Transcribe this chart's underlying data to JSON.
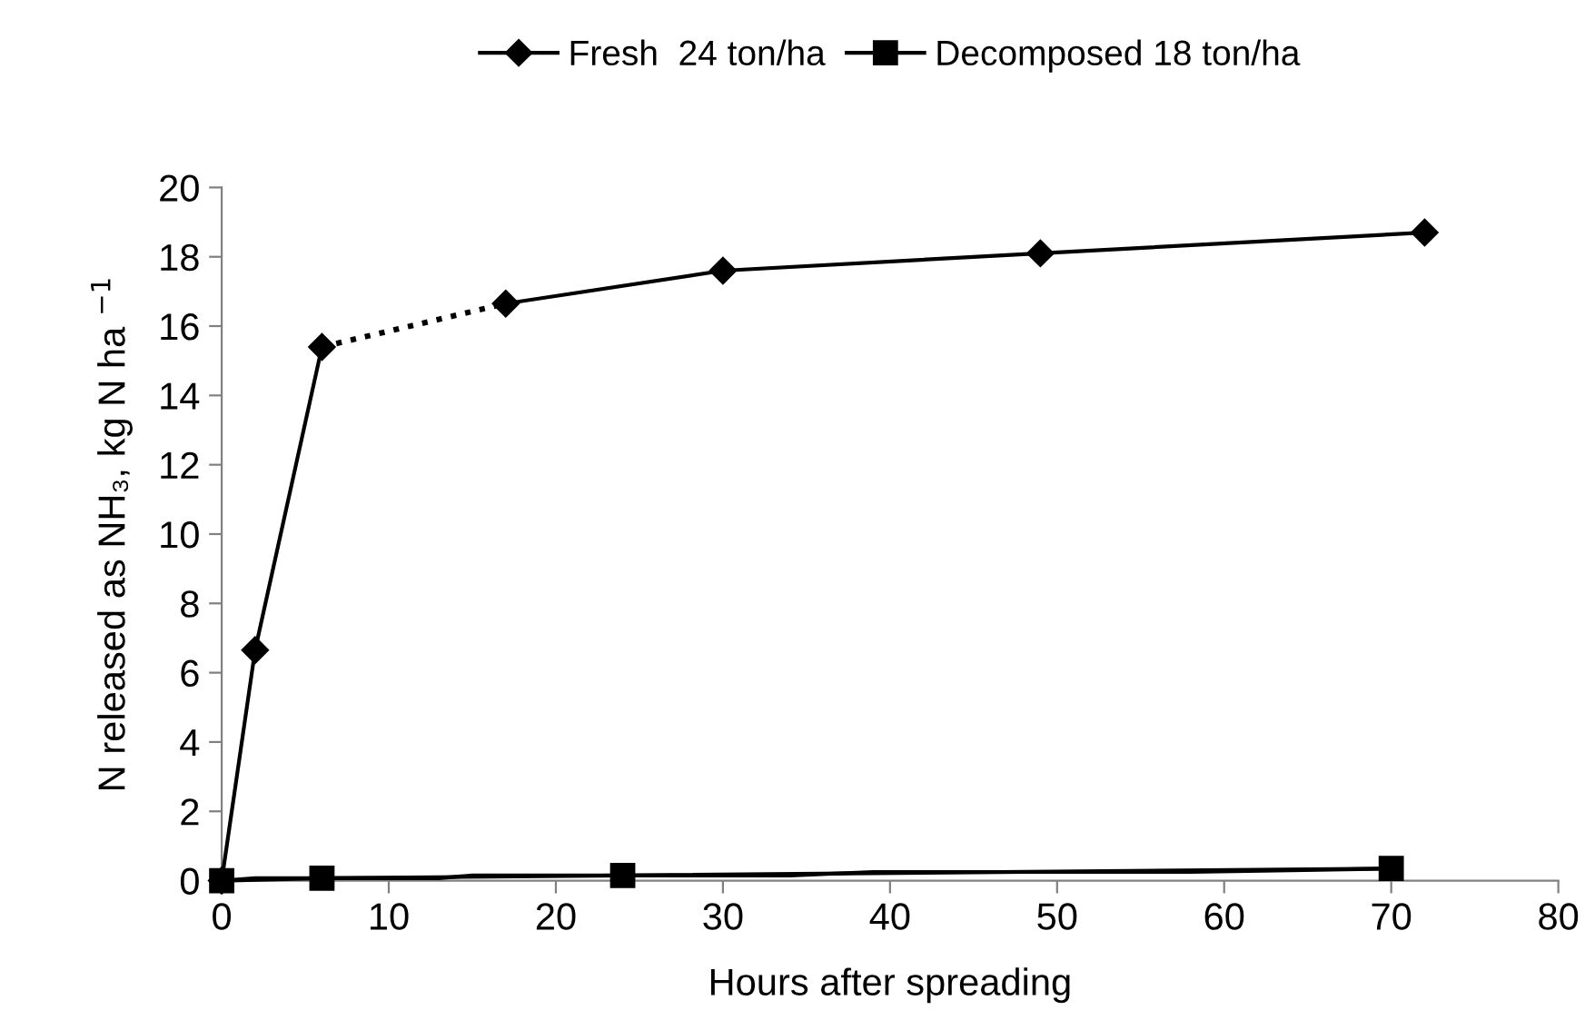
{
  "chart_data": {
    "type": "line",
    "xlabel": "Hours after spreading",
    "ylabel": "N released as NH₃, kg N ha $^{−1}$",
    "xlim": [
      0,
      80
    ],
    "xticks": [
      0,
      10,
      20,
      30,
      40,
      50,
      60,
      70,
      80
    ],
    "ylim": [
      0,
      20
    ],
    "yticks": [
      0,
      2,
      4,
      6,
      8,
      10,
      12,
      14,
      16,
      18,
      20
    ],
    "grid": false,
    "legend": "top",
    "series": [
      {
        "name": "Fresh  24 ton/ha",
        "color": "#000000",
        "marker": "diamond",
        "line_style": "solid",
        "x": [
          0,
          2,
          6
        ],
        "values": [
          0,
          6.65,
          15.4
        ]
      },
      {
        "color": "#000000",
        "line_style": "dotted",
        "x": [
          6,
          17
        ],
        "values": [
          15.4,
          16.65
        ]
      },
      {
        "color": "#000000",
        "marker": "diamond",
        "line_style": "solid",
        "x": [
          17,
          30,
          49,
          72
        ],
        "values": [
          16.65,
          17.6,
          18.1,
          18.7
        ]
      },
      {
        "color": "#000000",
        "marker": "none",
        "line_style": "solid",
        "x": [
          0,
          2,
          13,
          15,
          34,
          39,
          58,
          64,
          70
        ],
        "values": [
          0,
          0.07,
          0.07,
          0.15,
          0.15,
          0.25,
          0.25,
          0.3,
          0.35
        ]
      },
      {
        "name": "Decomposed 18 ton/ha",
        "color": "#000000",
        "marker": "square",
        "line_style": "solid",
        "x": [
          0,
          6,
          24,
          70
        ],
        "values": [
          0,
          0.07,
          0.15,
          0.35
        ]
      }
    ]
  }
}
